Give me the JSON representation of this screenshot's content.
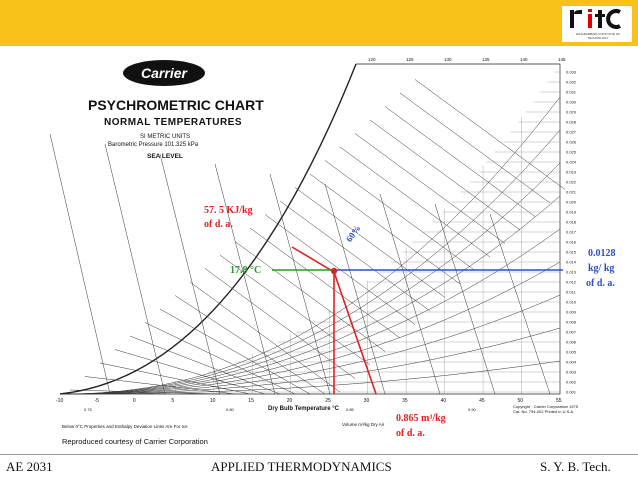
{
  "header": {
    "logo_text": "rit",
    "logo_caption": "RAJARAMBAPU INSTITUTE OF TECHNOLOGY"
  },
  "chart": {
    "brand": "Carrier",
    "title": "PSYCHROMETRIC CHART",
    "subtitle": "NORMAL TEMPERATURES",
    "units": "SI METRIC UNITS",
    "pressure": "Barometric Pressure 101.325 kPa",
    "altitude": "SEA LEVEL",
    "x_axis_label": "Dry Bulb Temperature °C",
    "x_ticks": [
      "-10",
      "-5",
      "0",
      "5",
      "10",
      "15",
      "20",
      "25",
      "30",
      "35",
      "40",
      "45",
      "50",
      "55"
    ],
    "top_ticks": [
      "120",
      "125",
      "130",
      "135",
      "140",
      "145"
    ],
    "right_ticks": [
      "0.033",
      "0.032",
      "0.031",
      "0.030",
      "0.029",
      "0.028",
      "0.027",
      "0.026",
      "0.025",
      "0.024",
      "0.023",
      "0.022",
      "0.021",
      "0.020",
      "0.019",
      "0.018",
      "0.017",
      "0.016",
      "0.015",
      "0.014",
      "0.013",
      "0.012",
      "0.011",
      "0.010",
      "0.009",
      "0.008",
      "0.007",
      "0.006",
      "0.005",
      "0.004",
      "0.003",
      "0.002",
      "0.001"
    ],
    "bottom_volume_labels": [
      "0.75",
      "0.80",
      "0.85",
      "0.90"
    ],
    "volume_axis_label": "Volume m³/kg Dry Air",
    "note": "Below 0°C Properties and Enthalpy Deviation Lines Are For Ice",
    "copyright": "Copyright · Carrier Corporation 1975 Cat. No. 794-002   Printed in U.S.A.",
    "credit": "Reproduced courtesy of Carrier Corporation"
  },
  "annotations": {
    "enthalpy": [
      "57. 5 KJ/kg",
      "of d. a."
    ],
    "dew_point": "17.8 °C",
    "relative_humidity": "60%",
    "humidity_ratio": [
      "0.0128",
      "kg/ kg",
      "of d. a."
    ],
    "volume": [
      "0.865 m³/kg",
      "of d. a."
    ]
  },
  "footer": {
    "left": "AE 2031",
    "center": "APPLIED THERMODYNAMICS",
    "right": "S. Y. B. Tech."
  },
  "colors": {
    "banner": "#f7c11a",
    "red": "#e02020",
    "green": "#2a9a2a",
    "blue": "#2b4fc9"
  }
}
